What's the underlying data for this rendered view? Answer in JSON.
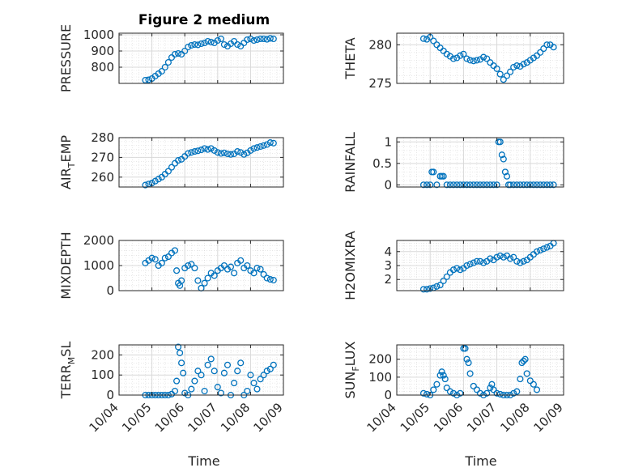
{
  "figure": {
    "title": "Figure 2 medium",
    "xlabel": "Time",
    "marker_color": "#0072BD",
    "grid_color": "#d9d9d9",
    "axis_color": "#262626"
  },
  "chart_data": [
    {
      "type": "scatter",
      "ylabel": {
        "main": "PRESSURE",
        "sub": "",
        "tail": ""
      },
      "x_ticks": [
        "10/04",
        "10/05",
        "10/06",
        "10/07",
        "10/08",
        "10/09"
      ],
      "x_tick_labels_shown": false,
      "xlim": [
        0,
        5
      ],
      "ylim": [
        700,
        1010
      ],
      "y_ticks": [
        800,
        900,
        1000
      ],
      "y_tick_labels": [
        "800",
        "900",
        "1000"
      ],
      "grid": true,
      "series": [
        {
          "x": [
            0.8,
            0.9,
            1.0,
            1.1,
            1.2,
            1.3,
            1.4,
            1.5,
            1.6,
            1.7,
            1.8,
            1.9,
            2.0,
            2.1,
            2.2,
            2.3,
            2.4,
            2.5,
            2.6,
            2.7,
            2.8,
            2.9,
            3.0,
            3.1,
            3.2,
            3.3,
            3.4,
            3.5,
            3.6,
            3.7,
            3.8,
            3.9,
            4.0,
            4.1,
            4.2,
            4.3,
            4.4,
            4.5,
            4.6,
            4.7
          ],
          "y": [
            720,
            722,
            730,
            745,
            760,
            775,
            800,
            830,
            860,
            880,
            885,
            880,
            900,
            925,
            935,
            940,
            938,
            945,
            950,
            960,
            955,
            950,
            965,
            975,
            940,
            930,
            945,
            960,
            940,
            930,
            950,
            970,
            975,
            965,
            970,
            975,
            975,
            972,
            978,
            975
          ]
        }
      ]
    },
    {
      "type": "scatter",
      "ylabel": {
        "main": "THETA",
        "sub": "",
        "tail": ""
      },
      "x_ticks": [
        "10/04",
        "10/05",
        "10/06",
        "10/07",
        "10/08",
        "10/09"
      ],
      "x_tick_labels_shown": false,
      "xlim": [
        0,
        5
      ],
      "ylim": [
        275,
        281.5
      ],
      "y_ticks": [
        275,
        280
      ],
      "y_tick_labels": [
        "275",
        "280"
      ],
      "grid": true,
      "series": [
        {
          "x": [
            0.8,
            0.9,
            1.0,
            1.1,
            1.2,
            1.3,
            1.4,
            1.5,
            1.6,
            1.7,
            1.8,
            1.9,
            2.0,
            2.1,
            2.2,
            2.3,
            2.4,
            2.5,
            2.6,
            2.7,
            2.8,
            2.9,
            3.0,
            3.1,
            3.2,
            3.3,
            3.4,
            3.5,
            3.6,
            3.7,
            3.8,
            3.9,
            4.0,
            4.1,
            4.2,
            4.3,
            4.4,
            4.5,
            4.6,
            4.7
          ],
          "y": [
            280.8,
            280.7,
            281.0,
            280.5,
            280.0,
            279.6,
            279.2,
            278.8,
            278.5,
            278.2,
            278.3,
            278.6,
            278.8,
            278.2,
            278.0,
            277.9,
            278.0,
            278.1,
            278.4,
            278.2,
            277.7,
            277.3,
            276.9,
            276.2,
            275.5,
            276.0,
            276.5,
            277.1,
            277.3,
            277.2,
            277.5,
            277.7,
            278.0,
            278.3,
            278.6,
            279.0,
            279.5,
            280.0,
            280.0,
            279.7
          ]
        }
      ]
    },
    {
      "type": "scatter",
      "ylabel": {
        "main": "AIR",
        "sub": "T",
        "tail": "EMP"
      },
      "x_ticks": [
        "10/04",
        "10/05",
        "10/06",
        "10/07",
        "10/08",
        "10/09"
      ],
      "x_tick_labels_shown": false,
      "xlim": [
        0,
        5
      ],
      "ylim": [
        255,
        280
      ],
      "y_ticks": [
        260,
        270,
        280
      ],
      "y_tick_labels": [
        "260",
        "270",
        "280"
      ],
      "grid": true,
      "series": [
        {
          "x": [
            0.8,
            0.9,
            1.0,
            1.1,
            1.2,
            1.3,
            1.4,
            1.5,
            1.6,
            1.7,
            1.8,
            1.9,
            2.0,
            2.1,
            2.2,
            2.3,
            2.4,
            2.5,
            2.6,
            2.7,
            2.8,
            2.9,
            3.0,
            3.1,
            3.2,
            3.3,
            3.4,
            3.5,
            3.6,
            3.7,
            3.8,
            3.9,
            4.0,
            4.1,
            4.2,
            4.3,
            4.4,
            4.5,
            4.6,
            4.7
          ],
          "y": [
            256,
            256.5,
            257,
            258,
            259,
            260,
            261.5,
            263,
            265,
            267,
            268.5,
            269,
            270.5,
            272,
            272.5,
            273,
            273.3,
            273.8,
            274.5,
            274,
            274.5,
            273.5,
            272.5,
            272,
            272.3,
            271.8,
            271.5,
            271.8,
            273,
            272.5,
            271.5,
            272.3,
            273.5,
            274.5,
            275,
            275.5,
            276,
            276.5,
            277.5,
            277.2
          ]
        }
      ]
    },
    {
      "type": "scatter",
      "ylabel": {
        "main": "RAINFALL",
        "sub": "",
        "tail": ""
      },
      "x_ticks": [
        "10/04",
        "10/05",
        "10/06",
        "10/07",
        "10/08",
        "10/09"
      ],
      "x_tick_labels_shown": false,
      "xlim": [
        0,
        5
      ],
      "ylim": [
        -0.05,
        1.1
      ],
      "y_ticks": [
        0,
        0.5,
        1
      ],
      "y_tick_labels": [
        "0",
        "0.5",
        "1"
      ],
      "grid": true,
      "series": [
        {
          "x": [
            0.8,
            0.9,
            1.0,
            1.05,
            1.1,
            1.2,
            1.3,
            1.35,
            1.4,
            1.5,
            1.6,
            1.7,
            1.8,
            1.9,
            2.0,
            2.1,
            2.2,
            2.3,
            2.4,
            2.5,
            2.6,
            2.7,
            2.8,
            2.9,
            3.0,
            3.05,
            3.1,
            3.15,
            3.2,
            3.25,
            3.3,
            3.35,
            3.4,
            3.5,
            3.6,
            3.7,
            3.8,
            3.9,
            4.0,
            4.1,
            4.2,
            4.3,
            4.4,
            4.5,
            4.6,
            4.7
          ],
          "y": [
            0,
            0,
            0,
            0.3,
            0.3,
            0,
            0.2,
            0.2,
            0.2,
            0,
            0,
            0,
            0,
            0,
            0,
            0,
            0,
            0,
            0,
            0,
            0,
            0,
            0,
            0,
            0,
            1.0,
            1.0,
            0.7,
            0.6,
            0.3,
            0.2,
            0,
            0,
            0,
            0,
            0,
            0,
            0,
            0,
            0,
            0,
            0,
            0,
            0,
            0,
            0
          ]
        }
      ]
    },
    {
      "type": "scatter",
      "ylabel": {
        "main": "MIXDEPTH",
        "sub": "",
        "tail": ""
      },
      "x_ticks": [
        "10/04",
        "10/05",
        "10/06",
        "10/07",
        "10/08",
        "10/09"
      ],
      "x_tick_labels_shown": false,
      "xlim": [
        0,
        5
      ],
      "ylim": [
        0,
        2000
      ],
      "y_ticks": [
        0,
        1000,
        2000
      ],
      "y_tick_labels": [
        "0",
        "1000",
        "2000"
      ],
      "grid": true,
      "series": [
        {
          "x": [
            0.8,
            0.9,
            1.0,
            1.1,
            1.2,
            1.3,
            1.4,
            1.5,
            1.6,
            1.7,
            1.75,
            1.8,
            1.85,
            1.9,
            2.0,
            2.1,
            2.2,
            2.3,
            2.4,
            2.5,
            2.6,
            2.7,
            2.8,
            2.9,
            3.0,
            3.1,
            3.2,
            3.3,
            3.4,
            3.5,
            3.6,
            3.7,
            3.8,
            3.9,
            4.0,
            4.1,
            4.2,
            4.3,
            4.4,
            4.5,
            4.6,
            4.7
          ],
          "y": [
            1100,
            1200,
            1300,
            1250,
            1000,
            1100,
            1300,
            1350,
            1500,
            1600,
            800,
            300,
            200,
            400,
            900,
            1000,
            1050,
            900,
            400,
            100,
            300,
            500,
            700,
            600,
            800,
            900,
            1000,
            850,
            950,
            700,
            1100,
            1200,
            900,
            1000,
            800,
            700,
            900,
            850,
            650,
            500,
            450,
            420
          ]
        }
      ]
    },
    {
      "type": "scatter",
      "ylabel": {
        "main": "H2OMIXRA",
        "sub": "",
        "tail": ""
      },
      "x_ticks": [
        "10/04",
        "10/05",
        "10/06",
        "10/07",
        "10/08",
        "10/09"
      ],
      "x_tick_labels_shown": false,
      "xlim": [
        0,
        5
      ],
      "ylim": [
        1.2,
        4.8
      ],
      "y_ticks": [
        2,
        3,
        4
      ],
      "y_tick_labels": [
        "2",
        "3",
        "4"
      ],
      "grid": true,
      "series": [
        {
          "x": [
            0.8,
            0.9,
            1.0,
            1.1,
            1.2,
            1.3,
            1.4,
            1.5,
            1.6,
            1.7,
            1.8,
            1.9,
            2.0,
            2.1,
            2.2,
            2.3,
            2.4,
            2.5,
            2.6,
            2.7,
            2.8,
            2.9,
            3.0,
            3.1,
            3.2,
            3.3,
            3.4,
            3.5,
            3.6,
            3.7,
            3.8,
            3.9,
            4.0,
            4.1,
            4.2,
            4.3,
            4.4,
            4.5,
            4.6,
            4.7
          ],
          "y": [
            1.3,
            1.3,
            1.35,
            1.4,
            1.5,
            1.6,
            1.9,
            2.2,
            2.5,
            2.7,
            2.8,
            2.7,
            2.8,
            3.0,
            3.1,
            3.2,
            3.3,
            3.3,
            3.2,
            3.3,
            3.5,
            3.4,
            3.6,
            3.7,
            3.6,
            3.7,
            3.5,
            3.6,
            3.3,
            3.2,
            3.3,
            3.4,
            3.6,
            3.8,
            4.0,
            4.1,
            4.2,
            4.3,
            4.4,
            4.6
          ]
        }
      ]
    },
    {
      "type": "scatter",
      "ylabel": {
        "main": "TERR",
        "sub": "M",
        "tail": "SL"
      },
      "x_ticks": [
        "10/04",
        "10/05",
        "10/06",
        "10/07",
        "10/08",
        "10/09"
      ],
      "x_tick_labels_shown": true,
      "xlim": [
        0,
        5
      ],
      "ylim": [
        0,
        250
      ],
      "y_ticks": [
        0,
        100,
        200
      ],
      "y_tick_labels": [
        "0",
        "100",
        "200"
      ],
      "grid": true,
      "series": [
        {
          "x": [
            0.8,
            0.9,
            1.0,
            1.1,
            1.2,
            1.3,
            1.4,
            1.5,
            1.6,
            1.7,
            1.75,
            1.8,
            1.85,
            1.9,
            1.95,
            2.0,
            2.1,
            2.2,
            2.3,
            2.4,
            2.5,
            2.6,
            2.7,
            2.8,
            2.9,
            3.0,
            3.1,
            3.2,
            3.3,
            3.4,
            3.5,
            3.6,
            3.7,
            3.8,
            3.9,
            4.0,
            4.1,
            4.2,
            4.3,
            4.4,
            4.5,
            4.6,
            4.7
          ],
          "y": [
            0,
            0,
            0,
            0,
            0,
            0,
            0,
            0,
            5,
            20,
            70,
            240,
            210,
            160,
            110,
            10,
            0,
            30,
            70,
            120,
            100,
            20,
            150,
            180,
            120,
            40,
            10,
            110,
            150,
            0,
            60,
            120,
            160,
            0,
            20,
            100,
            60,
            30,
            80,
            100,
            120,
            130,
            150
          ]
        }
      ]
    },
    {
      "type": "scatter",
      "ylabel": {
        "main": "SUN",
        "sub": "F",
        "tail": "LUX"
      },
      "x_ticks": [
        "10/04",
        "10/05",
        "10/06",
        "10/07",
        "10/08",
        "10/09"
      ],
      "x_tick_labels_shown": true,
      "xlim": [
        0,
        5
      ],
      "ylim": [
        0,
        280
      ],
      "y_ticks": [
        0,
        100,
        200
      ],
      "y_tick_labels": [
        "0",
        "100",
        "200"
      ],
      "grid": true,
      "series": [
        {
          "x": [
            0.8,
            0.9,
            1.0,
            1.1,
            1.2,
            1.3,
            1.35,
            1.4,
            1.45,
            1.5,
            1.6,
            1.7,
            1.8,
            1.9,
            2.0,
            2.05,
            2.1,
            2.15,
            2.2,
            2.3,
            2.4,
            2.5,
            2.6,
            2.7,
            2.8,
            2.85,
            2.9,
            3.0,
            3.1,
            3.2,
            3.3,
            3.4,
            3.5,
            3.6,
            3.7,
            3.75,
            3.8,
            3.85,
            3.9,
            4.0,
            4.1,
            4.2
          ],
          "y": [
            10,
            5,
            0,
            30,
            60,
            110,
            130,
            110,
            90,
            40,
            20,
            10,
            0,
            10,
            260,
            260,
            200,
            180,
            120,
            50,
            30,
            10,
            0,
            10,
            40,
            60,
            30,
            10,
            5,
            0,
            0,
            0,
            10,
            20,
            90,
            180,
            190,
            200,
            120,
            80,
            60,
            30
          ]
        }
      ]
    }
  ]
}
